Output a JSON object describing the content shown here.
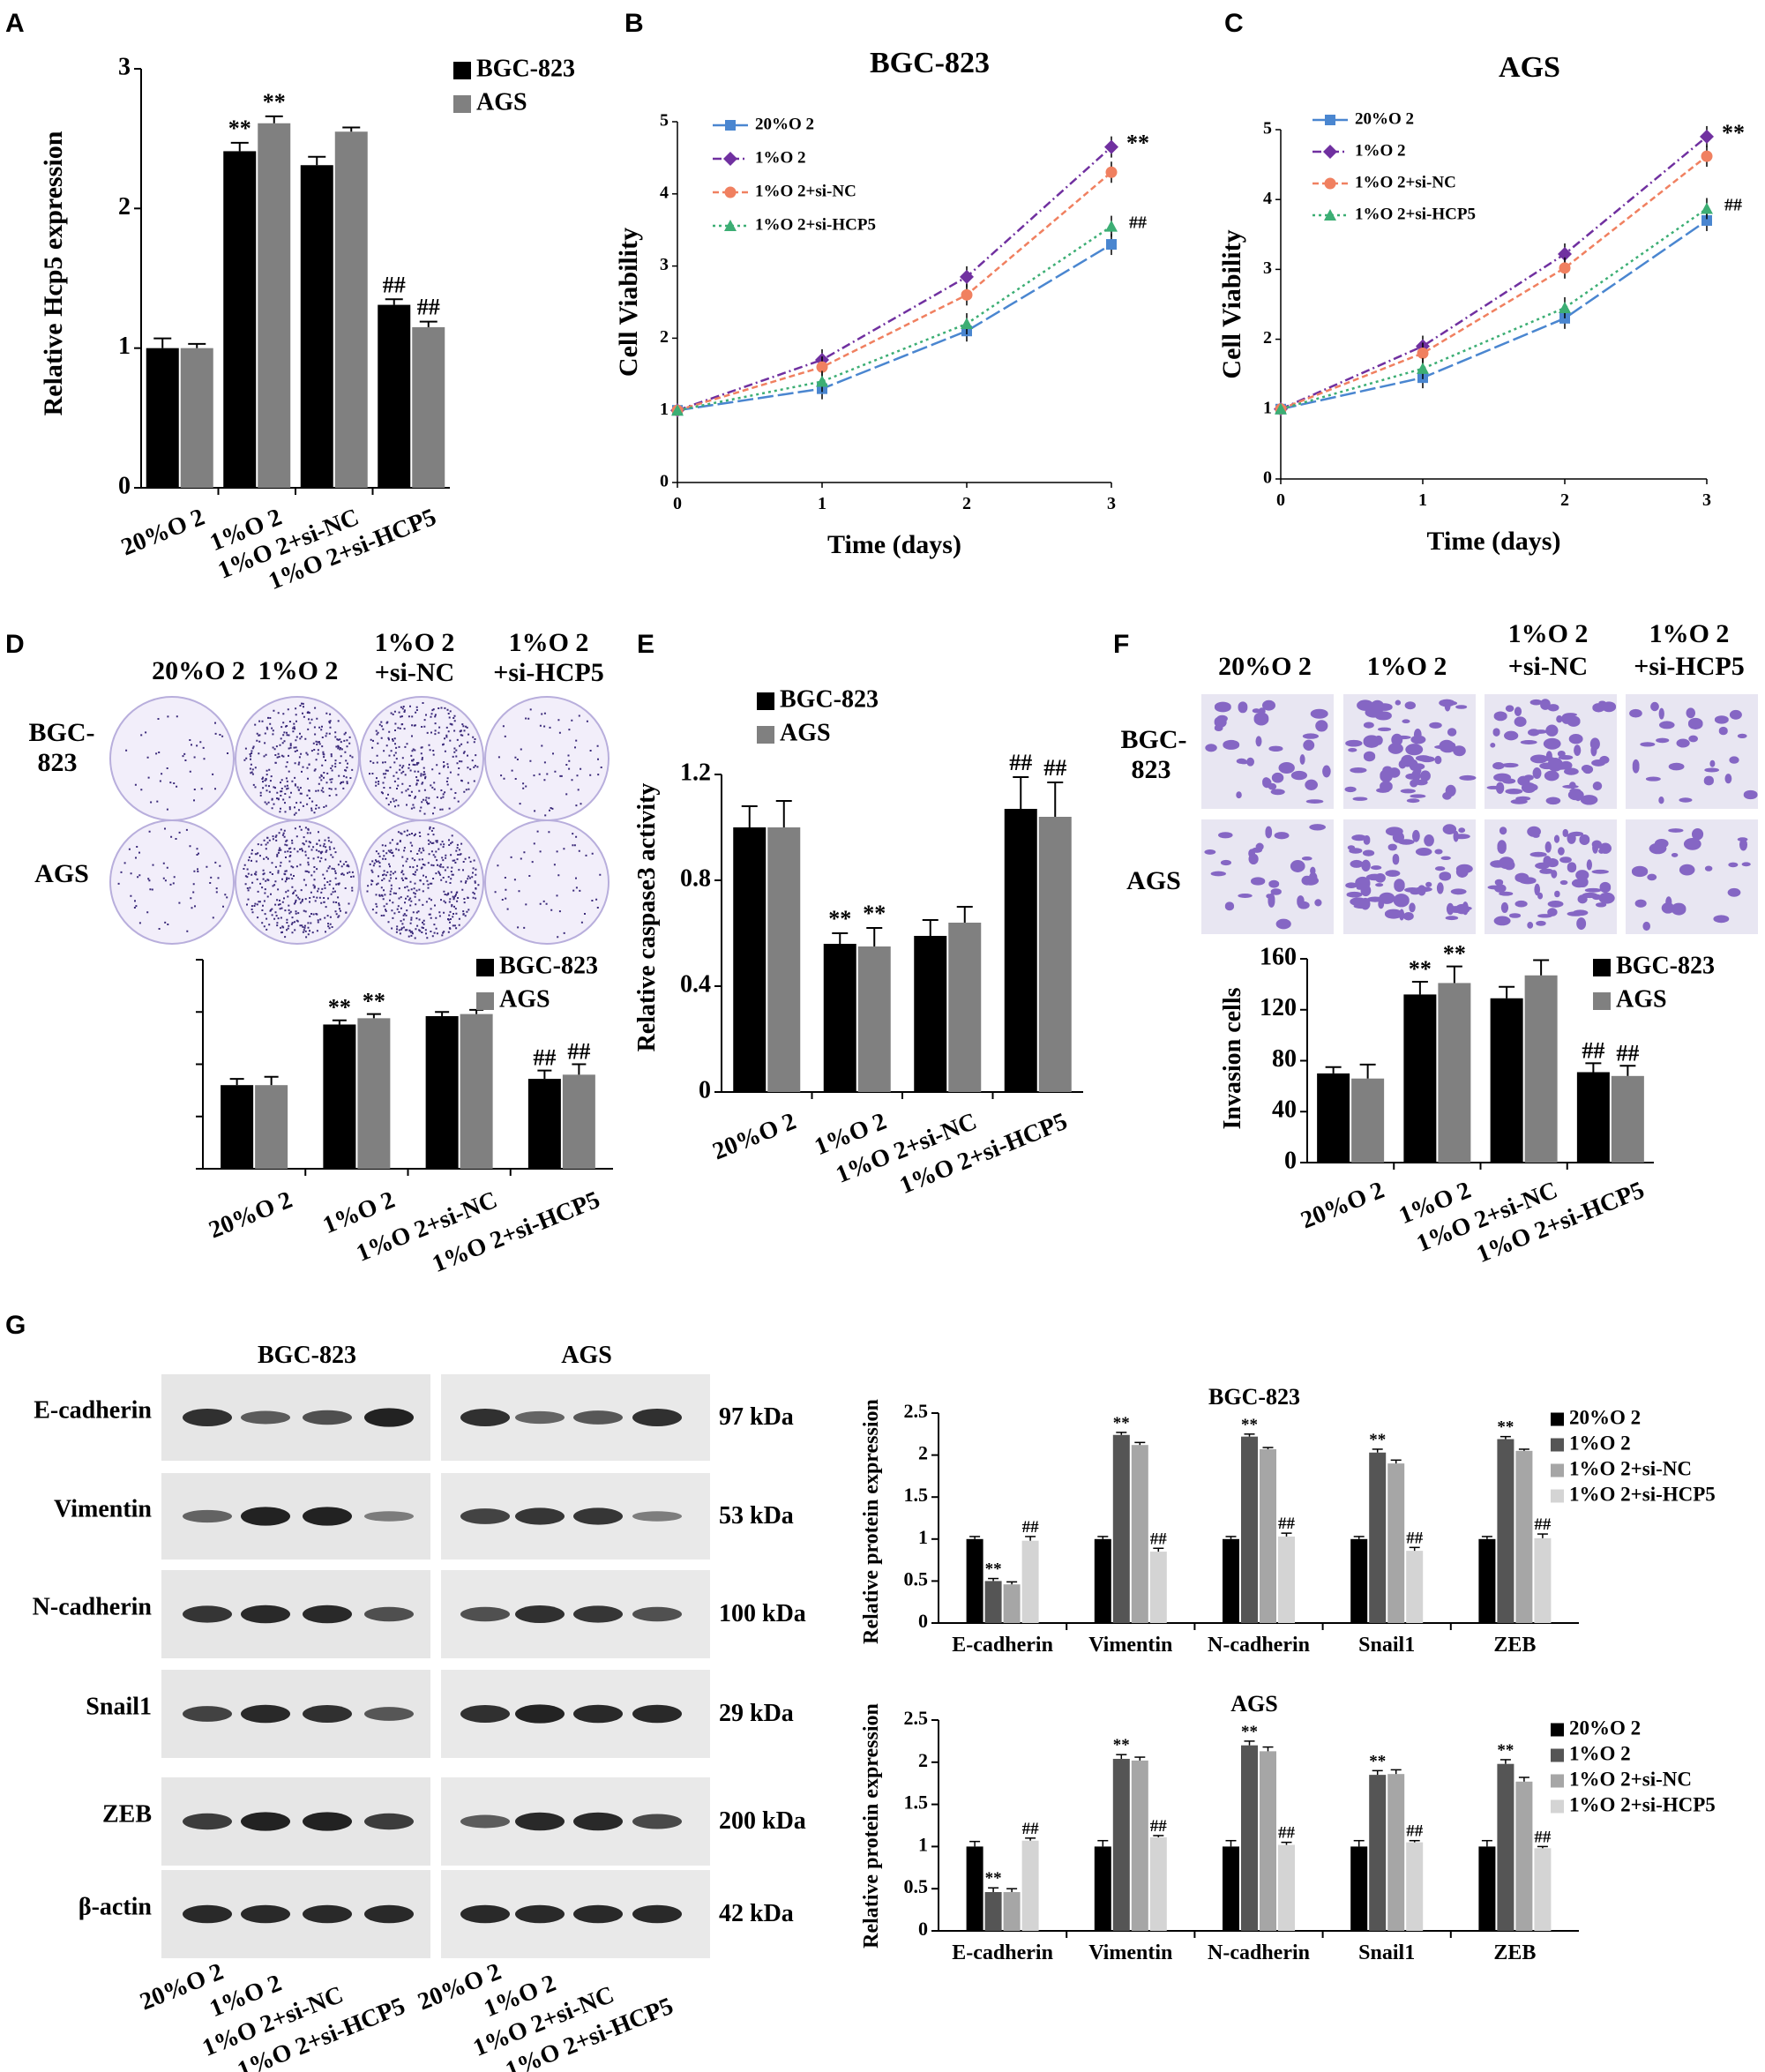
{
  "colors": {
    "black": "#000000",
    "gray": "#808080",
    "blue": "#4a86d0",
    "purple": "#7030a0",
    "orange": "#f08060",
    "green": "#3cae74",
    "dark": "#555555",
    "mid": "#a6a6a6",
    "light": "#d4d4d4",
    "stain": "#6b46b8"
  },
  "panel_letters": {
    "A": "A",
    "B": "B",
    "C": "C",
    "D": "D",
    "E": "E",
    "F": "F",
    "G": "G"
  },
  "bar_groups": [
    "20%O 2",
    "1%O 2",
    "1%O 2+si-NC",
    "1%O 2+si-HCP5"
  ],
  "conditions": [
    "20%O 2",
    "1%O 2",
    "1%O 2+si-NC",
    "1%O 2+si-HCP5"
  ],
  "conditions_two_line": [
    [
      "20%O 2",
      ""
    ],
    [
      "1%O 2",
      ""
    ],
    [
      "1%O 2",
      "+si-NC"
    ],
    [
      "1%O 2",
      "+si-HCP5"
    ]
  ],
  "cell_lines": [
    "BGC-823",
    "AGS"
  ],
  "cell_lines_wrapped": [
    [
      "BGC-",
      "823"
    ],
    [
      "AGS",
      ""
    ]
  ],
  "proteins": [
    "E-cadherin",
    "Vimentin",
    "N-cadherin",
    "Snail1",
    "ZEB",
    "β-actin"
  ],
  "kda": [
    "97 kDa",
    "53 kDa",
    "100 kDa",
    "29 kDa",
    "200 kDa",
    "42 kDa"
  ],
  "blot_intensity": [
    [
      0.85,
      0.5,
      0.6,
      0.95
    ],
    [
      0.45,
      0.95,
      0.95,
      0.25
    ],
    [
      0.8,
      0.9,
      0.9,
      0.6
    ],
    [
      0.7,
      0.9,
      0.85,
      0.55
    ],
    [
      0.75,
      0.95,
      0.95,
      0.75
    ],
    [
      0.9,
      0.9,
      0.9,
      0.9
    ]
  ],
  "blot_intensity_ags": [
    [
      0.85,
      0.45,
      0.55,
      0.85
    ],
    [
      0.7,
      0.8,
      0.8,
      0.25
    ],
    [
      0.6,
      0.85,
      0.8,
      0.6
    ],
    [
      0.85,
      0.95,
      0.9,
      0.9
    ],
    [
      0.5,
      0.9,
      0.9,
      0.65
    ],
    [
      0.9,
      0.9,
      0.9,
      0.9
    ]
  ],
  "colony_density": [
    [
      0.1,
      0.75,
      0.7,
      0.15
    ],
    [
      0.15,
      0.9,
      0.95,
      0.12
    ]
  ],
  "invasion_density": [
    [
      0.45,
      0.9,
      0.9,
      0.35
    ],
    [
      0.4,
      0.85,
      0.85,
      0.3
    ]
  ],
  "chart_data": [
    {
      "id": "A",
      "type": "bar",
      "title": "",
      "xlabel": "",
      "ylabel": "Relative Hcp5 expression",
      "ylim": [
        0,
        3
      ],
      "yticks": [
        "0",
        "1",
        "2",
        "3"
      ],
      "categories": [
        "20%O 2",
        "1%O 2",
        "1%O 2+si-NC",
        "1%O 2+si-HCP5"
      ],
      "series": [
        {
          "name": "BGC-823",
          "values": [
            1.0,
            2.41,
            2.31,
            1.31
          ],
          "errors": [
            0.07,
            0.06,
            0.06,
            0.04
          ],
          "marks": [
            "",
            "**",
            "",
            "##"
          ]
        },
        {
          "name": "AGS",
          "values": [
            1.0,
            2.61,
            2.55,
            1.15
          ],
          "errors": [
            0.03,
            0.05,
            0.03,
            0.04
          ],
          "marks": [
            "",
            "**",
            "",
            "##"
          ]
        }
      ]
    },
    {
      "id": "B",
      "type": "line",
      "title": "BGC-823",
      "xlabel": "Time (days)",
      "ylabel": "Cell Viability",
      "xlim": [
        0,
        3
      ],
      "ylim": [
        0,
        5
      ],
      "xticks": [
        "0",
        "1",
        "2",
        "3"
      ],
      "yticks": [
        "0",
        "1",
        "2",
        "3",
        "4",
        "5"
      ],
      "x": [
        0,
        1,
        2,
        3
      ],
      "end_marks": [
        "**",
        "##"
      ],
      "series": [
        {
          "name": "20%O 2",
          "values": [
            1.0,
            1.3,
            2.1,
            3.3
          ]
        },
        {
          "name": "1%O 2",
          "values": [
            1.0,
            1.7,
            2.85,
            4.65
          ]
        },
        {
          "name": "1%O 2+si-NC",
          "values": [
            1.0,
            1.6,
            2.6,
            4.3
          ]
        },
        {
          "name": "1%O 2+si-HCP5",
          "values": [
            1.0,
            1.4,
            2.2,
            3.55
          ]
        }
      ]
    },
    {
      "id": "C",
      "type": "line",
      "title": "AGS",
      "xlabel": "Time (days)",
      "ylabel": "Cell Viability",
      "xlim": [
        0,
        3
      ],
      "ylim": [
        0,
        5
      ],
      "xticks": [
        "0",
        "1",
        "2",
        "3"
      ],
      "yticks": [
        "0",
        "1",
        "2",
        "3",
        "4",
        "5"
      ],
      "x": [
        0,
        1,
        2,
        3
      ],
      "end_marks": [
        "**",
        "##"
      ],
      "series": [
        {
          "name": "20%O 2",
          "values": [
            1.0,
            1.45,
            2.3,
            3.7
          ]
        },
        {
          "name": "1%O 2",
          "values": [
            1.0,
            1.9,
            3.22,
            4.9
          ]
        },
        {
          "name": "1%O 2+si-NC",
          "values": [
            1.0,
            1.8,
            3.02,
            4.62
          ]
        },
        {
          "name": "1%O 2+si-HCP5",
          "values": [
            1.0,
            1.58,
            2.45,
            3.87
          ]
        }
      ]
    },
    {
      "id": "D",
      "type": "bar",
      "title": "",
      "xlabel": "",
      "ylabel": "",
      "ylim": [
        0,
        1
      ],
      "categories": [
        "20%O 2",
        "1%O 2",
        "1%O 2+si-NC",
        "1%O 2+si-HCP5"
      ],
      "series": [
        {
          "name": "BGC-823",
          "values": [
            0.4,
            0.69,
            0.73,
            0.43
          ],
          "errors": [
            0.03,
            0.02,
            0.02,
            0.04
          ],
          "marks": [
            "",
            "**",
            "",
            "##"
          ]
        },
        {
          "name": "AGS",
          "values": [
            0.4,
            0.72,
            0.74,
            0.45
          ],
          "errors": [
            0.04,
            0.02,
            0.02,
            0.05
          ],
          "marks": [
            "",
            "**",
            "",
            "##"
          ]
        }
      ]
    },
    {
      "id": "E",
      "type": "bar",
      "title": "",
      "xlabel": "",
      "ylabel": "Relative caspase3 activity",
      "ylim": [
        0,
        1.2
      ],
      "yticks": [
        "0",
        "0.4",
        "0.8",
        "1.2"
      ],
      "categories": [
        "20%O 2",
        "1%O 2",
        "1%O 2+si-NC",
        "1%O 2+si-HCP5"
      ],
      "series": [
        {
          "name": "BGC-823",
          "values": [
            1.0,
            0.56,
            0.59,
            1.07
          ],
          "errors": [
            0.08,
            0.04,
            0.06,
            0.12
          ],
          "marks": [
            "",
            "**",
            "",
            "##"
          ]
        },
        {
          "name": "AGS",
          "values": [
            1.0,
            0.55,
            0.64,
            1.04
          ],
          "errors": [
            0.1,
            0.07,
            0.06,
            0.13
          ],
          "marks": [
            "",
            "**",
            "",
            "##"
          ]
        }
      ]
    },
    {
      "id": "F",
      "type": "bar",
      "title": "",
      "xlabel": "",
      "ylabel": "Invasion cells",
      "ylim": [
        0,
        160
      ],
      "yticks": [
        "0",
        "40",
        "80",
        "120",
        "160"
      ],
      "categories": [
        "20%O 2",
        "1%O 2",
        "1%O 2+si-NC",
        "1%O 2+si-HCP5"
      ],
      "series": [
        {
          "name": "BGC-823",
          "values": [
            70,
            132,
            129,
            71
          ],
          "errors": [
            5,
            10,
            9,
            7
          ],
          "marks": [
            "",
            "**",
            "",
            "##"
          ]
        },
        {
          "name": "AGS",
          "values": [
            66,
            141,
            147,
            68
          ],
          "errors": [
            11,
            13,
            12,
            8
          ],
          "marks": [
            "",
            "**",
            "",
            "##"
          ]
        }
      ]
    },
    {
      "id": "G1",
      "type": "bar",
      "title": "BGC-823",
      "xlabel": "",
      "ylabel": "Relative protein expression",
      "ylim": [
        0,
        2.5
      ],
      "yticks": [
        "0",
        "0.5",
        "1",
        "1.5",
        "2",
        "2.5"
      ],
      "categories": [
        "E-cadherin",
        "Vimentin",
        "N-cadherin",
        "Snail1",
        "ZEB"
      ],
      "series": [
        {
          "name": "20%O 2",
          "values": [
            1.0,
            1.0,
            1.0,
            1.0,
            1.0
          ],
          "errors": [
            0.03,
            0.03,
            0.03,
            0.03,
            0.03
          ],
          "marks": [
            "",
            "",
            "",
            "",
            ""
          ]
        },
        {
          "name": "1%O 2",
          "values": [
            0.5,
            2.24,
            2.22,
            2.03,
            2.19
          ],
          "errors": [
            0.03,
            0.03,
            0.03,
            0.04,
            0.03
          ],
          "marks": [
            "**",
            "**",
            "**",
            "**",
            "**"
          ]
        },
        {
          "name": "1%O 2+si-NC",
          "values": [
            0.46,
            2.12,
            2.07,
            1.9,
            2.05
          ],
          "errors": [
            0.03,
            0.03,
            0.02,
            0.04,
            0.02
          ],
          "marks": [
            "",
            "",
            "",
            "",
            ""
          ]
        },
        {
          "name": "1%O 2+si-HCP5",
          "values": [
            0.98,
            0.85,
            1.03,
            0.86,
            1.01
          ],
          "errors": [
            0.05,
            0.04,
            0.04,
            0.04,
            0.05
          ],
          "marks": [
            "##",
            "##",
            "##",
            "##",
            "##"
          ]
        }
      ]
    },
    {
      "id": "G2",
      "type": "bar",
      "title": "AGS",
      "xlabel": "",
      "ylabel": "Relative protein expression",
      "ylim": [
        0,
        2.5
      ],
      "yticks": [
        "0",
        "0.5",
        "1",
        "1.5",
        "2",
        "2.5"
      ],
      "categories": [
        "E-cadherin",
        "Vimentin",
        "N-cadherin",
        "Snail1",
        "ZEB"
      ],
      "series": [
        {
          "name": "20%O 2",
          "values": [
            1.0,
            1.0,
            1.0,
            1.0,
            1.0
          ],
          "errors": [
            0.06,
            0.07,
            0.07,
            0.07,
            0.07
          ],
          "marks": [
            "",
            "",
            "",
            "",
            ""
          ]
        },
        {
          "name": "1%O 2",
          "values": [
            0.46,
            2.04,
            2.2,
            1.85,
            1.98
          ],
          "errors": [
            0.05,
            0.05,
            0.05,
            0.05,
            0.05
          ],
          "marks": [
            "**",
            "**",
            "**",
            "**",
            "**"
          ]
        },
        {
          "name": "1%O 2+si-NC",
          "values": [
            0.46,
            2.02,
            2.13,
            1.86,
            1.77
          ],
          "errors": [
            0.04,
            0.04,
            0.05,
            0.05,
            0.05
          ],
          "marks": [
            "",
            "",
            "",
            "",
            ""
          ]
        },
        {
          "name": "1%O 2+si-HCP5",
          "values": [
            1.07,
            1.11,
            1.02,
            1.05,
            0.98
          ],
          "errors": [
            0.03,
            0.02,
            0.03,
            0.02,
            0.02
          ],
          "marks": [
            "##",
            "##",
            "##",
            "##",
            "##"
          ]
        }
      ]
    }
  ]
}
